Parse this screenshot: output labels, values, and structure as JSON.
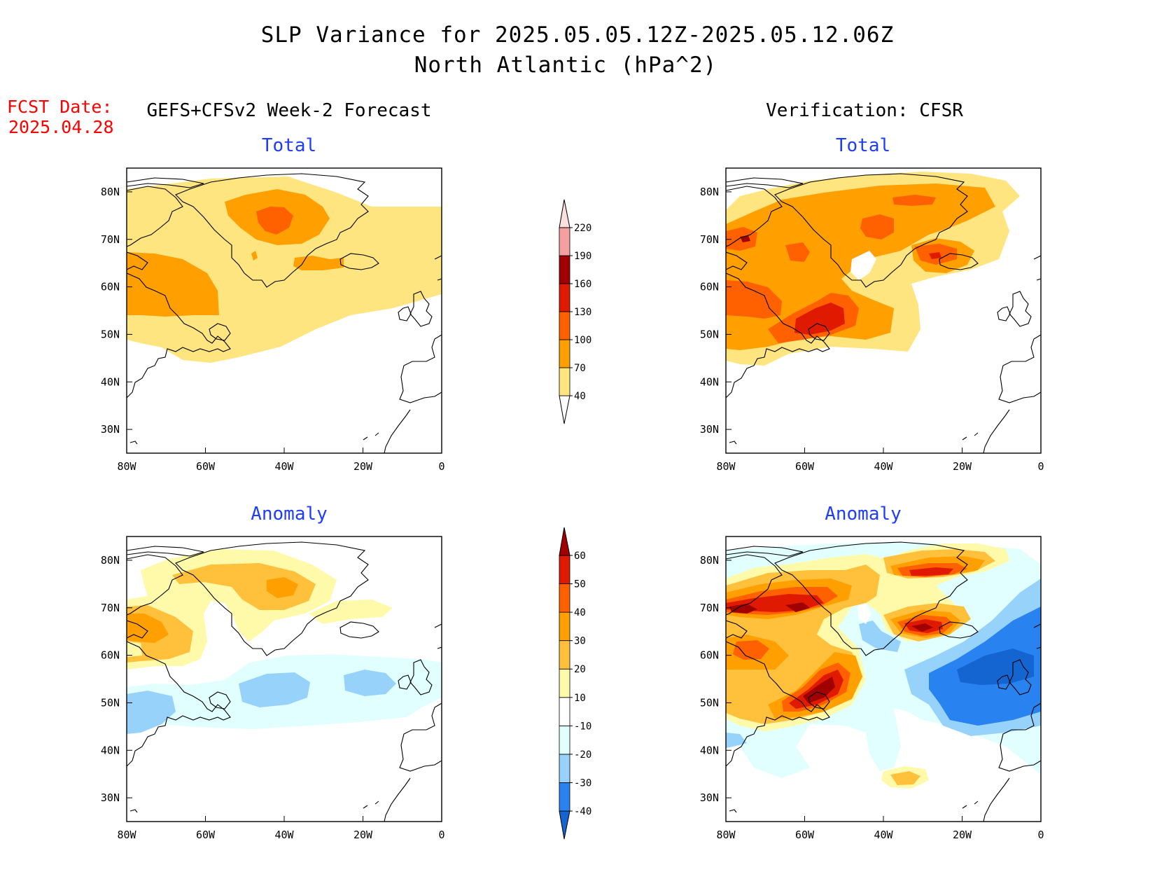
{
  "title": {
    "line1": "SLP Variance for 2025.05.05.12Z-2025.05.12.06Z",
    "line2": "North Atlantic (hPa^2)"
  },
  "fcst": {
    "label": "FCST Date:",
    "date": "2025.04.28"
  },
  "headers": {
    "left": "GEFS+CFSv2 Week-2 Forecast",
    "right": "Verification: CFSR"
  },
  "panels": [
    {
      "id": "fcst-total",
      "label": "Total"
    },
    {
      "id": "cfsr-total",
      "label": "Total"
    },
    {
      "id": "fcst-anom",
      "label": "Anomaly"
    },
    {
      "id": "cfsr-anom",
      "label": "Anomaly"
    }
  ],
  "axes": {
    "lon_ticks": [
      "80W",
      "60W",
      "40W",
      "20W",
      "0"
    ],
    "lat_ticks": [
      "80N",
      "70N",
      "60N",
      "50N",
      "40N",
      "30N"
    ],
    "lon_range": [
      -80,
      0
    ],
    "lat_range": [
      25,
      85
    ]
  },
  "colorbars": {
    "total": {
      "levels": [
        "40",
        "70",
        "100",
        "130",
        "160",
        "190",
        "220"
      ],
      "colors": [
        "#ffe57f",
        "#ffa000",
        "#ff6000",
        "#e01a00",
        "#a00000",
        "#f4a0a0",
        "#fce0e0"
      ]
    },
    "anomaly": {
      "levels": [
        "-40",
        "-30",
        "-20",
        "-10",
        "10",
        "20",
        "30",
        "40",
        "50",
        "60"
      ],
      "colors": [
        "#1464d2",
        "#2882f0",
        "#96d2fa",
        "#e1ffff",
        "#ffffff",
        "#fffaaa",
        "#ffc03c",
        "#ffa000",
        "#ff6000",
        "#e01a00",
        "#a00000"
      ]
    }
  }
}
